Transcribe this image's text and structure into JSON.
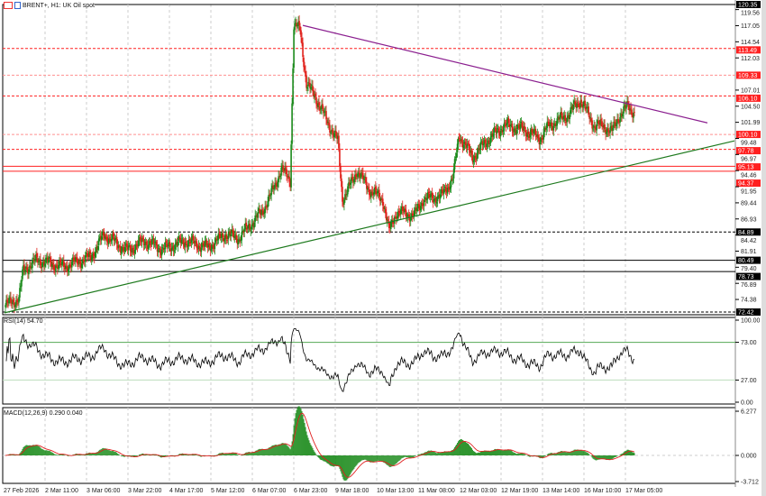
{
  "window": {
    "title": "BRENT+, H1: UK Oil spot"
  },
  "colors": {
    "bull": "#1a8a1a",
    "bear": "#e0201a",
    "resistance": "#ff2020",
    "trend_down": "#8b1f8f",
    "trend_up": "#1e7a1e"
  },
  "chart_data": [
    {
      "type": "candlestick",
      "symbol_timeframe": "BRENT+, H1",
      "ylim": [
        72.42,
        120.35
      ],
      "price_ticks": [
        "119.56",
        "117.05",
        "114.54",
        "112.03",
        "107.01",
        "104.50",
        "101.99",
        "99.48",
        "96.97",
        "94.46",
        "91.95",
        "89.44",
        "86.93",
        "84.42",
        "81.91",
        "79.40",
        "76.89",
        "74.38"
      ],
      "price_level_labels": [
        {
          "price": "120.35",
          "style": "black"
        },
        {
          "price": "113.49",
          "style": "red"
        },
        {
          "price": "109.33",
          "style": "red"
        },
        {
          "price": "106.10",
          "style": "red"
        },
        {
          "price": "100.10",
          "style": "red"
        },
        {
          "price": "97.78",
          "style": "red"
        },
        {
          "price": "95.13",
          "style": "red"
        },
        {
          "price": "94.37",
          "style": "red"
        },
        {
          "price": "84.89",
          "style": "black"
        },
        {
          "price": "80.49",
          "style": "black"
        },
        {
          "price": "78.73",
          "style": "black"
        },
        {
          "price": "72.42",
          "style": "black"
        }
      ],
      "horizontal_lines": [
        {
          "price": 120.35,
          "color": "#000000",
          "dash": true
        },
        {
          "price": 113.49,
          "color": "#ff2020",
          "dash": true
        },
        {
          "price": 109.33,
          "color": "#ff9090",
          "dash": true
        },
        {
          "price": 106.1,
          "color": "#ff2020",
          "dash": true
        },
        {
          "price": 100.1,
          "color": "#ff9090",
          "dash": true
        },
        {
          "price": 97.78,
          "color": "#ff2020",
          "dash": true
        },
        {
          "price": 95.13,
          "color": "#ff2020",
          "dash": false
        },
        {
          "price": 94.37,
          "color": "#ff2020",
          "dash": false
        },
        {
          "price": 84.89,
          "color": "#000000",
          "dash": true
        },
        {
          "price": 80.49,
          "color": "#000000",
          "dash": false
        },
        {
          "price": 78.73,
          "color": "#000000",
          "dash": false
        },
        {
          "price": 72.42,
          "color": "#000000",
          "dash": true
        }
      ],
      "time_labels": [
        "27 Feb 2026",
        "2 Mar 11:00",
        "3 Mar 06:00",
        "3 Mar 22:00",
        "4 Mar 17:00",
        "5 Mar 12:00",
        "6 Mar 07:00",
        "6 Mar 23:00",
        "9 Mar 18:00",
        "10 Mar 13:00",
        "11 Mar 08:00",
        "12 Mar 03:00",
        "12 Mar 19:00",
        "13 Mar 14:00",
        "16 Mar 10:00",
        "17 Mar 05:00"
      ],
      "close_path": [
        [
          0,
          73.5
        ],
        [
          15,
          74.5
        ],
        [
          20,
          79
        ],
        [
          35,
          80.5
        ],
        [
          65,
          79.5
        ],
        [
          95,
          81
        ],
        [
          110,
          84.5
        ],
        [
          135,
          82
        ],
        [
          155,
          83.5
        ],
        [
          175,
          82.2
        ],
        [
          200,
          83.5
        ],
        [
          225,
          82.5
        ],
        [
          245,
          84.5
        ],
        [
          260,
          84
        ],
        [
          285,
          88
        ],
        [
          295,
          90.5
        ],
        [
          307,
          94.7
        ],
        [
          317,
          93
        ],
        [
          321,
          117
        ],
        [
          328,
          116.5
        ],
        [
          335,
          108
        ],
        [
          345,
          106
        ],
        [
          355,
          103
        ],
        [
          370,
          99
        ],
        [
          375,
          90
        ],
        [
          387,
          93
        ],
        [
          391,
          94.5
        ],
        [
          405,
          91.5
        ],
        [
          420,
          90
        ],
        [
          427,
          85
        ],
        [
          435,
          88
        ],
        [
          455,
          87.5
        ],
        [
          465,
          90
        ],
        [
          485,
          90.5
        ],
        [
          498,
          93.3
        ],
        [
          505,
          100
        ],
        [
          520,
          96.5
        ],
        [
          535,
          99
        ],
        [
          555,
          101.5
        ],
        [
          575,
          101
        ],
        [
          595,
          99.5
        ],
        [
          605,
          101.5
        ],
        [
          625,
          103
        ],
        [
          640,
          105.5
        ],
        [
          655,
          101.5
        ],
        [
          665,
          101.5
        ],
        [
          675,
          100.5
        ],
        [
          683,
          103
        ],
        [
          693,
          104.5
        ],
        [
          700,
          103.5
        ]
      ],
      "trendlines": [
        {
          "name": "descending",
          "color": "#8b1f8f",
          "from": 117.1,
          "to": 101.9
        },
        {
          "name": "ascending",
          "color": "#1e7a1e",
          "from": 72.3,
          "to": 99.1
        }
      ]
    },
    {
      "type": "line",
      "indicator": "RSI(14)",
      "label": "RSI(14) 54.70",
      "ylim": [
        0,
        100
      ],
      "levels": [
        73,
        27
      ],
      "ticks": [
        "100.00",
        "73.00",
        "27.00",
        "0.00"
      ]
    },
    {
      "type": "bar",
      "indicator": "MACD(12,26,9)",
      "label": "MACD(12,26,9) 0.290 0.040",
      "ylim": [
        -3.712,
        6.277
      ],
      "ticks": [
        "6.277",
        "0.000",
        "-3.712"
      ]
    }
  ]
}
